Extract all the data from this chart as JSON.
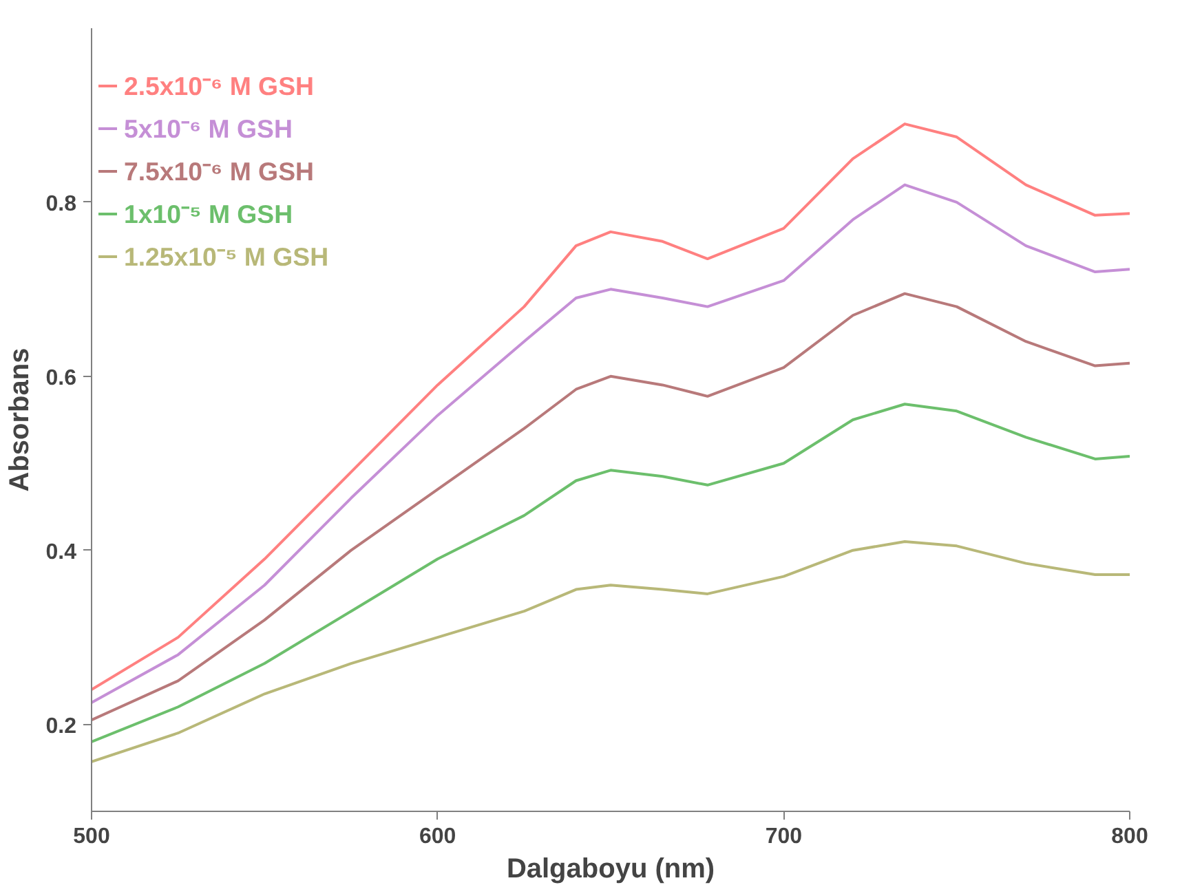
{
  "chart_data": {
    "type": "line",
    "xlabel": "Dalgaboyu (nm)",
    "ylabel": "Absorbans",
    "x": [
      500,
      525,
      550,
      575,
      600,
      625,
      640,
      650,
      665,
      678,
      700,
      720,
      735,
      750,
      770,
      790,
      800
    ],
    "xlim": [
      500,
      800
    ],
    "xticks": [
      500,
      600,
      700,
      800
    ],
    "ylim": [
      0.1,
      1.0
    ],
    "yticks": [
      0.2,
      0.4,
      0.6,
      0.8
    ],
    "grid": false,
    "legend": "top left",
    "marker": "none",
    "line_style": "solid",
    "series": [
      {
        "name": "2.5x10⁻⁶ M GSH",
        "color": "#ff8080",
        "values": [
          0.24,
          0.3,
          0.39,
          0.49,
          0.59,
          0.68,
          0.75,
          0.766,
          0.755,
          0.735,
          0.77,
          0.85,
          0.89,
          0.875,
          0.82,
          0.785,
          0.787
        ]
      },
      {
        "name": "5x10⁻⁶ M GSH",
        "color": "#c58fd6",
        "values": [
          0.225,
          0.28,
          0.36,
          0.46,
          0.555,
          0.64,
          0.69,
          0.7,
          0.69,
          0.68,
          0.71,
          0.78,
          0.82,
          0.8,
          0.75,
          0.72,
          0.723
        ]
      },
      {
        "name": "7.5x10⁻⁶ M GSH",
        "color": "#b8797a",
        "values": [
          0.205,
          0.25,
          0.32,
          0.4,
          0.47,
          0.54,
          0.585,
          0.6,
          0.59,
          0.577,
          0.61,
          0.67,
          0.695,
          0.68,
          0.64,
          0.612,
          0.615
        ]
      },
      {
        "name": "1x10⁻⁵ M GSH",
        "color": "#6cbf6c",
        "values": [
          0.18,
          0.22,
          0.27,
          0.33,
          0.39,
          0.44,
          0.48,
          0.492,
          0.485,
          0.475,
          0.5,
          0.55,
          0.568,
          0.56,
          0.53,
          0.505,
          0.508
        ]
      },
      {
        "name": "1.25x10⁻⁵ M GSH",
        "color": "#b8b878",
        "values": [
          0.157,
          0.19,
          0.235,
          0.27,
          0.3,
          0.33,
          0.355,
          0.36,
          0.355,
          0.35,
          0.37,
          0.4,
          0.41,
          0.405,
          0.385,
          0.372,
          0.372
        ]
      }
    ]
  }
}
